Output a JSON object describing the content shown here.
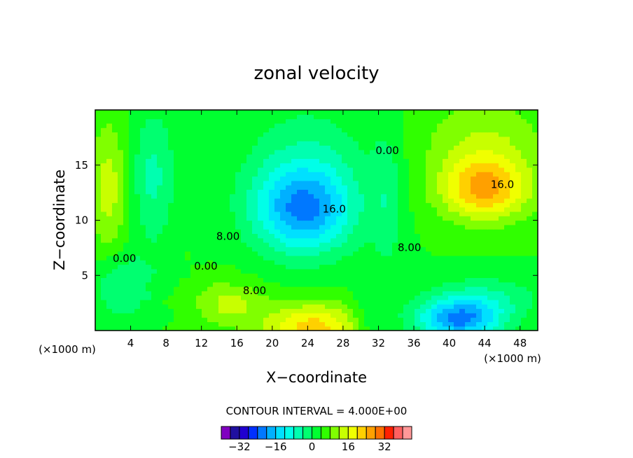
{
  "chart_data": {
    "type": "heatmap",
    "title": "zonal velocity",
    "xlabel": "X−coordinate",
    "ylabel": "Z−coordinate",
    "x_unit_label": "(×1000 m)",
    "y_unit_label": "(×1000 m)",
    "xlim": [
      0,
      50
    ],
    "ylim": [
      0,
      20
    ],
    "x_ticks": [
      4,
      8,
      12,
      16,
      20,
      24,
      28,
      32,
      36,
      40,
      44,
      48
    ],
    "x_tick_labels": [
      "4",
      "8",
      "12",
      "16",
      "20",
      "24",
      "28",
      "32",
      "36",
      "40",
      "44",
      "48"
    ],
    "y_ticks": [
      5,
      10,
      15
    ],
    "y_tick_labels": [
      "5",
      "10",
      "15"
    ],
    "contour_interval_label": "CONTOUR INTERVAL = 4.000E+00",
    "contour_labels": [
      {
        "text": "0.00",
        "x": 3.3,
        "y": 6.5
      },
      {
        "text": "0.00",
        "x": 12.5,
        "y": 5.8
      },
      {
        "text": "0.00",
        "x": 33.0,
        "y": 16.3
      },
      {
        "text": "8.00",
        "x": 15.0,
        "y": 8.5
      },
      {
        "text": "8.00",
        "x": 18.0,
        "y": 3.6
      },
      {
        "text": "8.00",
        "x": 35.5,
        "y": 7.5
      },
      {
        "text": "16.0",
        "x": 27.0,
        "y": 11.0
      },
      {
        "text": "16.0",
        "x": 46.0,
        "y": 13.2
      }
    ],
    "features": [
      {
        "kind": "min",
        "x": 23.5,
        "y": 10.8,
        "value": -24
      },
      {
        "kind": "max",
        "x": 44.5,
        "y": 12.8,
        "value": 20
      },
      {
        "kind": "max",
        "x": 24.5,
        "y": 0.8,
        "value": 16
      },
      {
        "kind": "min",
        "x": 40.5,
        "y": 1.2,
        "value": -24
      }
    ],
    "colorbar": {
      "levels": [
        -40,
        -36,
        -32,
        -28,
        -24,
        -20,
        -16,
        -12,
        -8,
        -4,
        0,
        4,
        8,
        12,
        16,
        20,
        24,
        28,
        32,
        36,
        40
      ],
      "colors": [
        "#8000c0",
        "#2010a0",
        "#2000d0",
        "#0030ff",
        "#0078ff",
        "#00b0ff",
        "#00e0ff",
        "#00ffe8",
        "#00ffb0",
        "#00ff70",
        "#00ff30",
        "#30ff00",
        "#80ff00",
        "#c8ff00",
        "#f0ff00",
        "#ffd000",
        "#ffa000",
        "#ff7000",
        "#ff2000",
        "#ff6060",
        "#ff9898"
      ],
      "tick_values": [
        -32,
        -16,
        0,
        16,
        32
      ],
      "tick_labels": [
        "−32",
        "−16",
        "0",
        "16",
        "32"
      ]
    }
  }
}
